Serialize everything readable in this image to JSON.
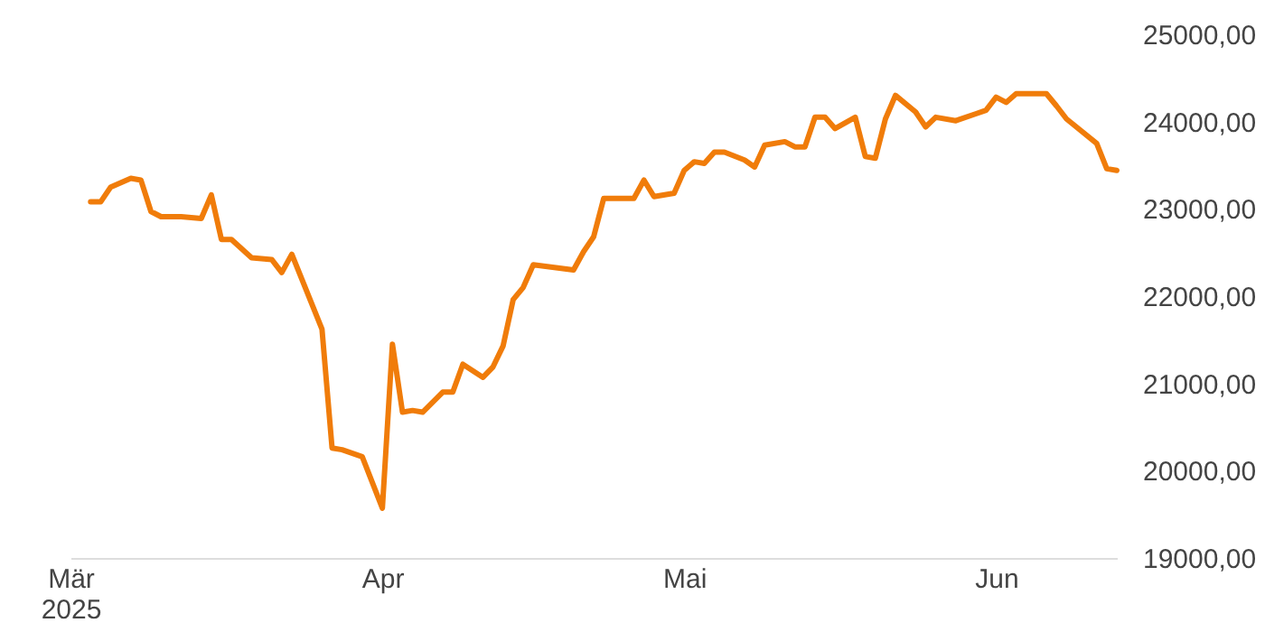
{
  "chart_data": {
    "type": "line",
    "x": [
      "2025-03-03",
      "2025-03-04",
      "2025-03-05",
      "2025-03-07",
      "2025-03-08",
      "2025-03-09",
      "2025-03-10",
      "2025-03-12",
      "2025-03-14",
      "2025-03-15",
      "2025-03-16",
      "2025-03-17",
      "2025-03-19",
      "2025-03-21",
      "2025-03-22",
      "2025-03-23",
      "2025-03-26",
      "2025-03-27",
      "2025-03-28",
      "2025-03-30",
      "2025-04-01",
      "2025-04-02",
      "2025-04-03",
      "2025-04-04",
      "2025-04-05",
      "2025-04-07",
      "2025-04-08",
      "2025-04-09",
      "2025-04-11",
      "2025-04-12",
      "2025-04-13",
      "2025-04-14",
      "2025-04-15",
      "2025-04-16",
      "2025-04-20",
      "2025-04-21",
      "2025-04-22",
      "2025-04-23",
      "2025-04-26",
      "2025-04-27",
      "2025-04-28",
      "2025-04-30",
      "2025-05-01",
      "2025-05-02",
      "2025-05-03",
      "2025-05-04",
      "2025-05-05",
      "2025-05-07",
      "2025-05-08",
      "2025-05-09",
      "2025-05-11",
      "2025-05-12",
      "2025-05-13",
      "2025-05-14",
      "2025-05-15",
      "2025-05-16",
      "2025-05-18",
      "2025-05-19",
      "2025-05-20",
      "2025-05-21",
      "2025-05-22",
      "2025-05-24",
      "2025-05-25",
      "2025-05-26",
      "2025-05-28",
      "2025-05-30",
      "2025-05-31",
      "2025-06-01",
      "2025-06-02",
      "2025-06-03",
      "2025-06-06",
      "2025-06-07",
      "2025-06-08",
      "2025-06-11",
      "2025-06-12",
      "2025-06-13"
    ],
    "series": [
      {
        "color": "#f07c0a",
        "values": [
          23080,
          23080,
          23250,
          23350,
          23330,
          22970,
          22910,
          22910,
          22890,
          23160,
          22650,
          22650,
          22440,
          22420,
          22270,
          22480,
          21620,
          20260,
          20240,
          20160,
          19570,
          21450,
          20670,
          20690,
          20670,
          20900,
          20900,
          21220,
          21070,
          21190,
          21430,
          21960,
          22100,
          22360,
          22300,
          22510,
          22680,
          23120,
          23120,
          23330,
          23140,
          23180,
          23440,
          23540,
          23520,
          23650,
          23650,
          23560,
          23480,
          23730,
          23770,
          23710,
          23710,
          24050,
          24050,
          23920,
          24050,
          23600,
          23580,
          24030,
          24300,
          24110,
          23940,
          24050,
          24010,
          24090,
          24130,
          24280,
          24220,
          24320,
          24320,
          24180,
          24030,
          23750,
          23460,
          23440
        ]
      }
    ],
    "xticks": [
      {
        "value": "2025-03-01",
        "label": "Mär\n2025"
      },
      {
        "value": "2025-04-01",
        "label": "Apr"
      },
      {
        "value": "2025-05-01",
        "label": "Mai"
      },
      {
        "value": "2025-06-01",
        "label": "Jun"
      }
    ],
    "xlim": [
      "2025-03-01",
      "2025-06-13"
    ],
    "ylim": [
      19000,
      25000
    ],
    "yticks": [
      {
        "value": 19000,
        "label": "19000,00"
      },
      {
        "value": 20000,
        "label": "20000,00"
      },
      {
        "value": 21000,
        "label": "21000,00"
      },
      {
        "value": 22000,
        "label": "22000,00"
      },
      {
        "value": 23000,
        "label": "23000,00"
      },
      {
        "value": 24000,
        "label": "24000,00"
      },
      {
        "value": 25000,
        "label": "25000,00"
      }
    ],
    "grid": false,
    "legend": false,
    "marker": "none",
    "line_style": "solid"
  }
}
